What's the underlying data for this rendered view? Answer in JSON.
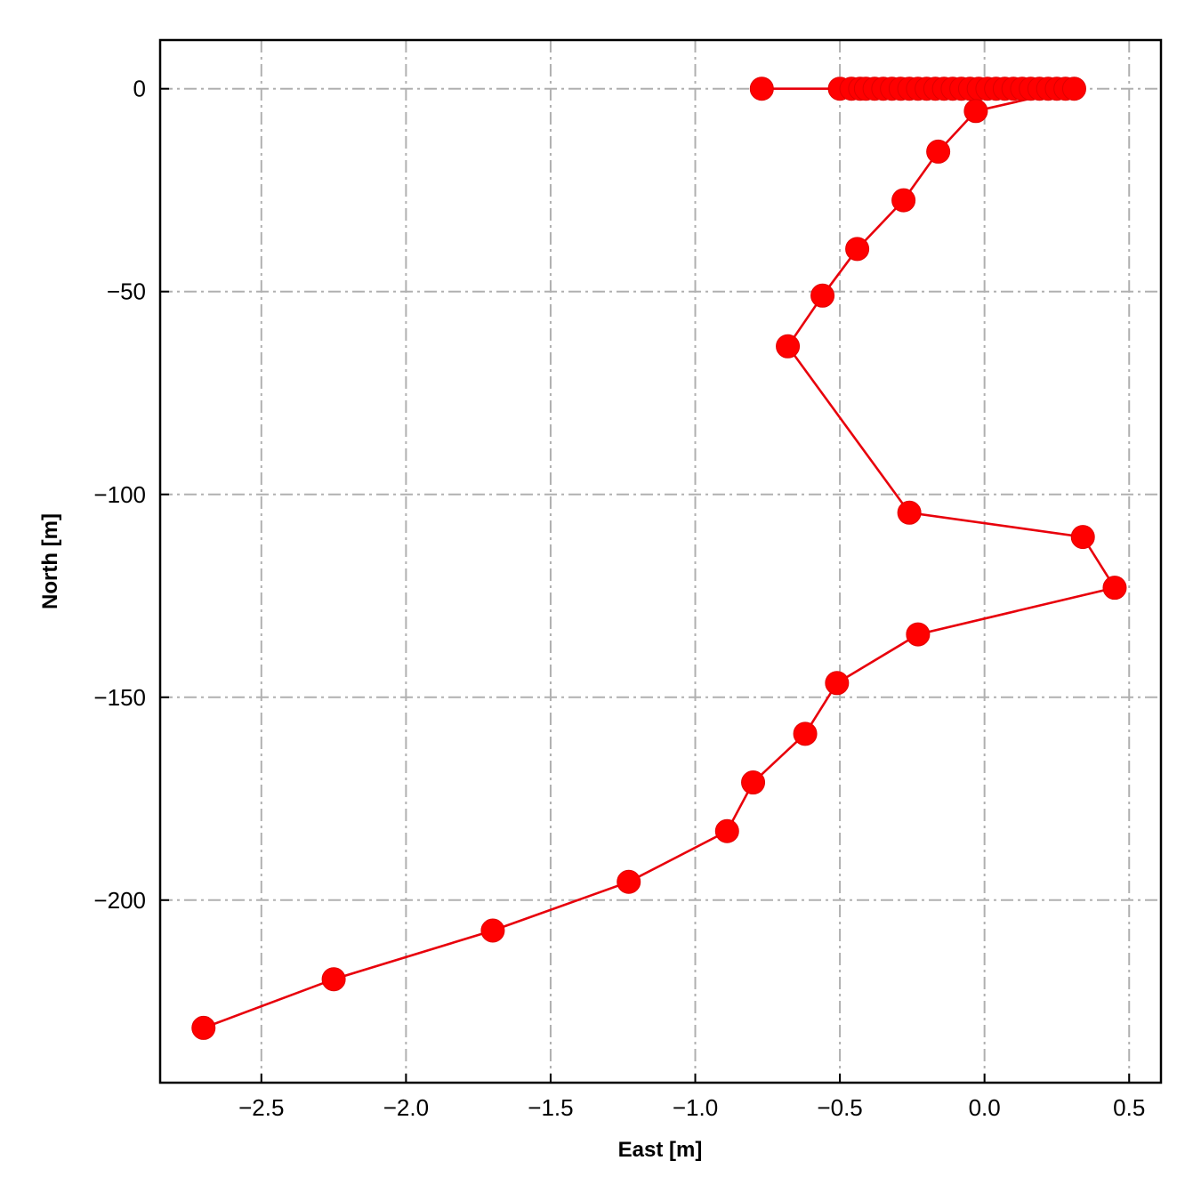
{
  "chart_data": {
    "type": "line",
    "title": "",
    "xlabel": "East [m]",
    "ylabel": "North [m]",
    "xlim": [
      -2.85,
      0.61
    ],
    "ylim": [
      -245,
      12
    ],
    "xticks": [
      -2.5,
      -2.0,
      -1.5,
      -1.0,
      -0.5,
      0.0,
      0.5
    ],
    "xtick_labels": [
      "−2.5",
      "−2.0",
      "−1.5",
      "−1.0",
      "−0.5",
      "0.0",
      "0.5"
    ],
    "yticks": [
      0,
      -50,
      -100,
      -150,
      -200
    ],
    "ytick_labels": [
      "0",
      "−50",
      "−100",
      "−150",
      "−200"
    ],
    "grid": true,
    "colors": {
      "series": "#ff0000"
    },
    "series": [
      {
        "marker": "circle",
        "x": [
          -0.77,
          -0.5,
          -0.46,
          -0.43,
          -0.41,
          -0.38,
          -0.35,
          -0.32,
          -0.29,
          -0.26,
          -0.23,
          -0.2,
          -0.17,
          -0.14,
          -0.11,
          -0.08,
          -0.05,
          -0.02,
          0.01,
          0.04,
          0.07,
          0.1,
          0.13,
          0.16,
          0.19,
          0.22,
          0.25,
          0.28,
          0.31,
          -0.03,
          -0.16,
          -0.28,
          -0.44,
          -0.56,
          -0.68,
          -0.26,
          0.34,
          0.45,
          -0.23,
          -0.51,
          -0.62,
          -0.8,
          -0.89,
          -1.23,
          -1.7,
          -2.25,
          -2.7
        ],
        "y": [
          0,
          0,
          0,
          0,
          0,
          0,
          0,
          0,
          0,
          0,
          0,
          0,
          0,
          0,
          0,
          0,
          0,
          0,
          0,
          0,
          0,
          0,
          0,
          0,
          0,
          0,
          0,
          0,
          0,
          -5.5,
          -15.5,
          -27.5,
          -39.5,
          -51,
          -63.5,
          -104.5,
          -110.5,
          -123,
          -134.5,
          -146.5,
          -159,
          -171,
          -183,
          -195.5,
          -207.5,
          -219.5,
          -231.5
        ]
      }
    ]
  }
}
